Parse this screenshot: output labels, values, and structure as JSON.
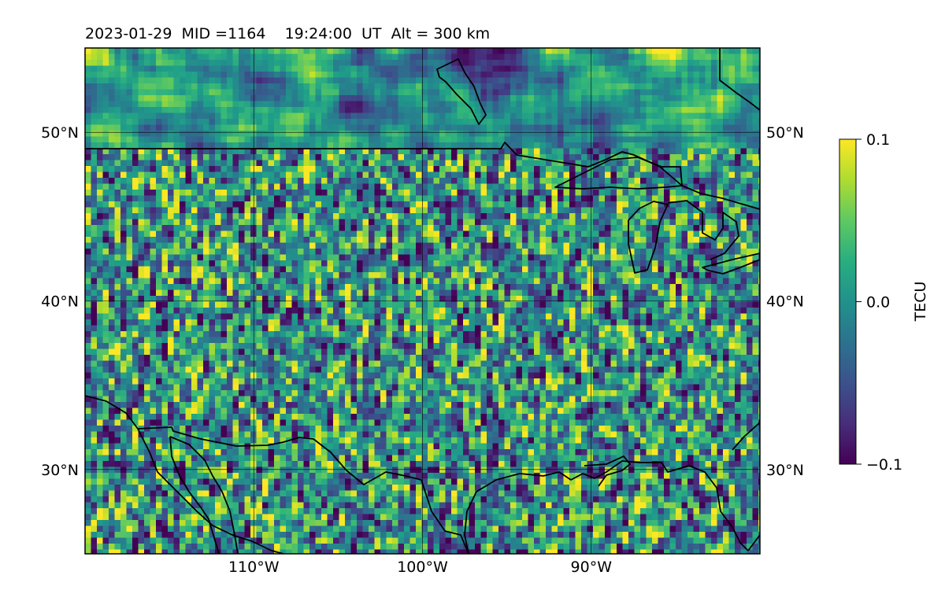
{
  "figure": {
    "title": "2023-01-29  MID =1164    19:24:00  UT  Alt = 300 km"
  },
  "map": {
    "lon_range": [
      -120,
      -80
    ],
    "lat_range": [
      25,
      55
    ],
    "lon_ticks": [
      {
        "value": -110,
        "label": "110°W"
      },
      {
        "value": -100,
        "label": "100°W"
      },
      {
        "value": -90,
        "label": "90°W"
      }
    ],
    "lat_ticks": [
      {
        "value": 50,
        "label": "50°N"
      },
      {
        "value": 40,
        "label": "40°N"
      },
      {
        "value": 30,
        "label": "30°N"
      }
    ],
    "grid": true,
    "coastlines": true,
    "field": "TEC perturbation (noisy, near zero)"
  },
  "colorbar": {
    "label": "TECU",
    "colormap": "viridis",
    "min": -0.1,
    "max": 0.1,
    "ticks": [
      {
        "value": 0.1,
        "label": "0.1"
      },
      {
        "value": 0.0,
        "label": "0.0"
      },
      {
        "value": -0.1,
        "label": "−0.1"
      }
    ]
  }
}
